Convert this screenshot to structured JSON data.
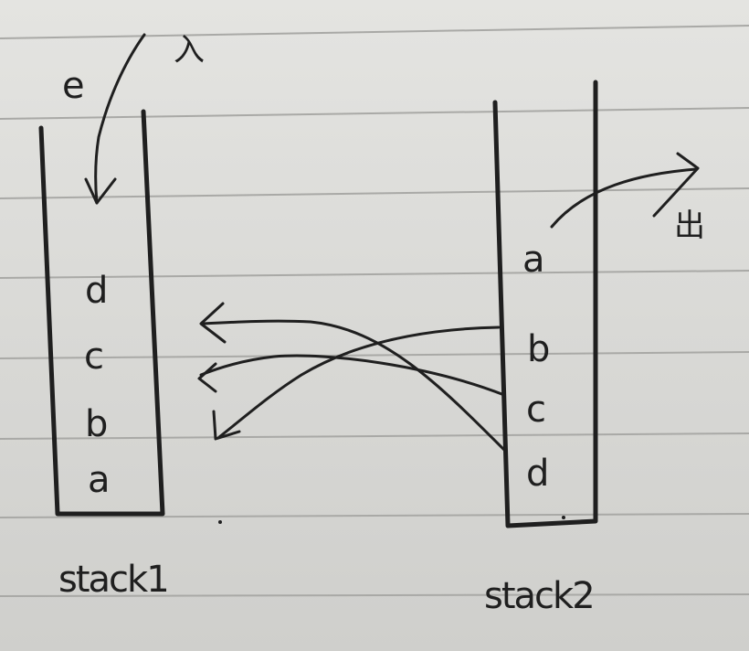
{
  "stack1": {
    "label": "stack1",
    "items_top_to_bottom": [
      "d",
      "c",
      "b",
      "a"
    ],
    "push_label": "e",
    "push_marker": "入"
  },
  "stack2": {
    "label": "stack2",
    "items_top_to_bottom": [
      "a",
      "b",
      "c",
      "d"
    ],
    "pop_marker": "出"
  },
  "ink_color": "#1f1f1f",
  "line_color": "#a9a9a6"
}
